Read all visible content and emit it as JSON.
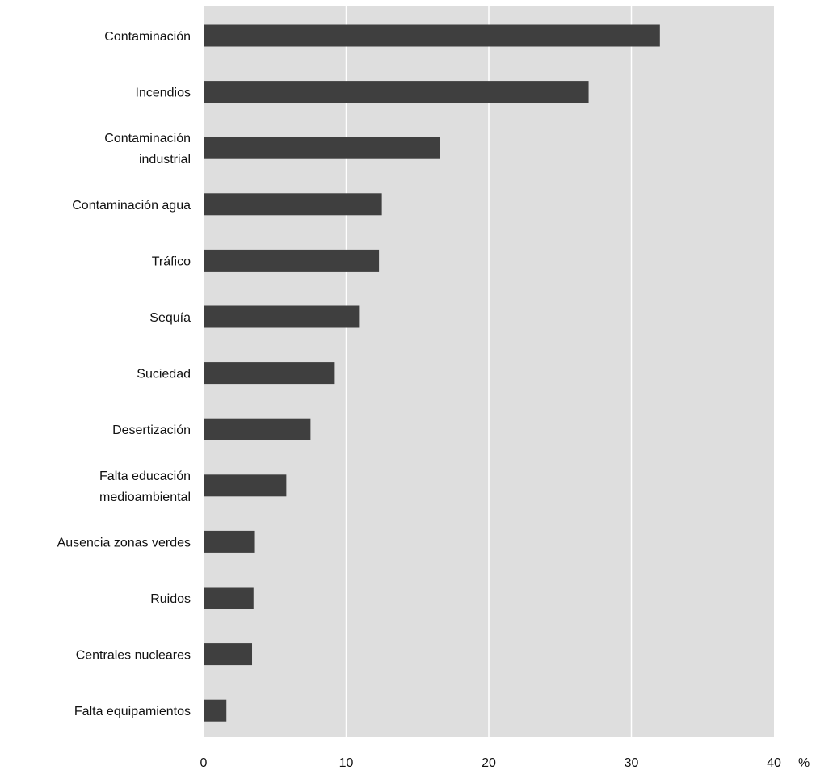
{
  "colors": {
    "plot_background": "#dedede",
    "bar": "#3f3f3f",
    "gridline": "#ffffff",
    "text": "#111111"
  },
  "chart_data": {
    "type": "bar",
    "orientation": "horizontal",
    "categories": [
      [
        "Contaminación"
      ],
      [
        "Incendios"
      ],
      [
        "Contaminación",
        "industrial"
      ],
      [
        "Contaminación agua"
      ],
      [
        "Tráfico"
      ],
      [
        "Sequía"
      ],
      [
        "Suciedad"
      ],
      [
        "Desertización"
      ],
      [
        "Falta educación",
        "medioambiental"
      ],
      [
        "Ausencia zonas verdes"
      ],
      [
        "Ruidos"
      ],
      [
        "Centrales nucleares"
      ],
      [
        "Falta equipamientos"
      ]
    ],
    "values": [
      32.0,
      27.0,
      16.6,
      12.5,
      12.3,
      10.9,
      9.2,
      7.5,
      5.8,
      3.6,
      3.5,
      3.4,
      1.6
    ],
    "xlim": [
      0,
      40
    ],
    "xticks": [
      0,
      10,
      20,
      30,
      40
    ],
    "xunit": "%",
    "grid": "vertical"
  }
}
